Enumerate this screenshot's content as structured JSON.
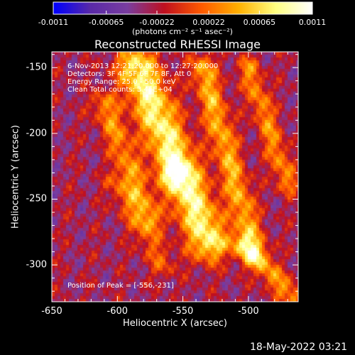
{
  "chart_data": {
    "type": "heatmap",
    "title": "Reconstructed RHESSI Image",
    "colorbar": {
      "ticks": [
        "-0.0011",
        "-0.00065",
        "-0.00022",
        "0.00022",
        "0.00065",
        "0.0011"
      ],
      "tick_values": [
        -0.0011,
        -0.00065,
        -0.00022,
        0.00022,
        0.00065,
        0.0011
      ],
      "range": [
        -0.0011,
        0.0011
      ],
      "unit_label": "(photons cm⁻² s⁻¹ asec⁻²)",
      "colormap": [
        "#0000ff",
        "#5a2aa8",
        "#7a3ea0",
        "#c01020",
        "#ff5a00",
        "#ffb000",
        "#ffff80",
        "#ffffff"
      ]
    },
    "xlabel": "Heliocentric X (arcsec)",
    "ylabel": "Heliocentric Y (arcsec)",
    "xlim": [
      -650,
      -462
    ],
    "ylim": [
      -328,
      -138
    ],
    "x_ticks": [
      "-650",
      "-600",
      "-550",
      "-500"
    ],
    "x_tick_values": [
      -650,
      -600,
      -550,
      -500
    ],
    "y_ticks": [
      "-150",
      "-200",
      "-250",
      "-300"
    ],
    "y_tick_values": [
      -150,
      -200,
      -250,
      -300
    ],
    "annotations": {
      "time": "6-Nov-2013 12:21:20.000 to 12:27:20.000",
      "detectors": "Detectors: 3F 4F 5F 6F 7F 8F, Att 0",
      "energy": "Energy Range: 25.0 - 50.0 keV",
      "clean": "Clean    Total counts: 3.46E+04",
      "peak": "Position of Peak = [-556,-231]"
    },
    "peak": {
      "x": -556,
      "y": -231
    },
    "ridges": [
      {
        "x0": -585,
        "y0": -150,
        "x1": -530,
        "y1": -282,
        "amp": 0.0011,
        "w": 11
      },
      {
        "x0": -610,
        "y0": -178,
        "x1": -575,
        "y1": -265,
        "amp": 0.0006,
        "w": 7
      },
      {
        "x0": -535,
        "y0": -150,
        "x1": -495,
        "y1": -290,
        "amp": 0.00075,
        "w": 7
      },
      {
        "x0": -500,
        "y0": -150,
        "x1": -470,
        "y1": -238,
        "amp": 0.0006,
        "w": 6
      },
      {
        "x0": -505,
        "y0": -285,
        "x1": -465,
        "y1": -325,
        "amp": 0.00065,
        "w": 6
      },
      {
        "x0": -600,
        "y0": -238,
        "x1": -565,
        "y1": -300,
        "amp": 0.0004,
        "w": 7
      }
    ],
    "peak_amp": 0.0011
  },
  "footer": {
    "timestamp": "18-May-2022 03:21"
  }
}
